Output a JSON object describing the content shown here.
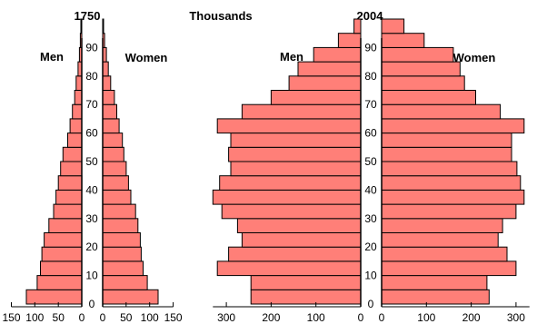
{
  "chart_data": [
    {
      "type": "bar",
      "title": "1750",
      "unit_label": "Thousands",
      "left_label": "Men",
      "right_label": "Women",
      "age_groups": [
        0,
        5,
        10,
        15,
        20,
        25,
        30,
        35,
        40,
        45,
        50,
        55,
        60,
        65,
        70,
        75,
        80,
        85,
        90,
        95
      ],
      "age_tick_labels": [
        "0",
        "10",
        "20",
        "30",
        "40",
        "50",
        "60",
        "70",
        "80",
        "90"
      ],
      "series": [
        {
          "name": "Men",
          "values": [
            118,
            95,
            88,
            85,
            80,
            70,
            60,
            55,
            50,
            45,
            40,
            30,
            25,
            20,
            15,
            12,
            8,
            5,
            3,
            2
          ]
        },
        {
          "name": "Women",
          "values": [
            118,
            95,
            86,
            82,
            80,
            75,
            70,
            60,
            55,
            50,
            45,
            42,
            35,
            30,
            25,
            17,
            12,
            8,
            4,
            2
          ]
        }
      ],
      "xlim": [
        0,
        150
      ],
      "x_tick_labels_left": [
        "150",
        "100",
        "50",
        "0"
      ],
      "x_tick_labels_right": [
        "0",
        "50",
        "100",
        "150"
      ],
      "bar_color": "#ff7f78"
    },
    {
      "type": "bar",
      "title": "2004",
      "left_label": "Men",
      "right_label": "Women",
      "age_groups": [
        0,
        5,
        10,
        15,
        20,
        25,
        30,
        35,
        40,
        45,
        50,
        55,
        60,
        65,
        70,
        75,
        80,
        85,
        90,
        95
      ],
      "age_tick_labels": [
        "0",
        "10",
        "20",
        "30",
        "40",
        "50",
        "60",
        "70",
        "80",
        "90"
      ],
      "series": [
        {
          "name": "Men",
          "values": [
            245,
            245,
            320,
            295,
            265,
            275,
            310,
            330,
            315,
            290,
            295,
            290,
            320,
            265,
            200,
            160,
            140,
            105,
            50,
            15
          ]
        },
        {
          "name": "Women",
          "values": [
            240,
            235,
            300,
            280,
            260,
            270,
            300,
            318,
            310,
            302,
            290,
            290,
            318,
            265,
            210,
            185,
            175,
            160,
            95,
            50
          ]
        }
      ],
      "xlim": [
        0,
        330
      ],
      "x_tick_labels_left": [
        "300",
        "200",
        "100",
        "0"
      ],
      "x_tick_labels_right": [
        "0",
        "100",
        "200",
        "300"
      ],
      "bar_color": "#ff7f78"
    }
  ]
}
